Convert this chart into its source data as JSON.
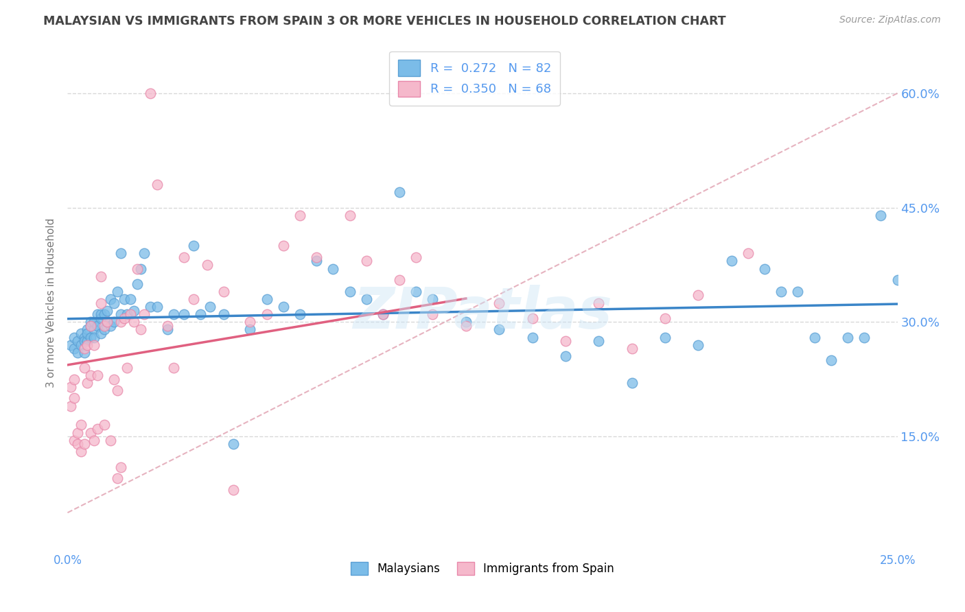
{
  "title": "MALAYSIAN VS IMMIGRANTS FROM SPAIN 3 OR MORE VEHICLES IN HOUSEHOLD CORRELATION CHART",
  "source": "Source: ZipAtlas.com",
  "ylabel": "3 or more Vehicles in Household",
  "legend_label1": "Malaysians",
  "legend_label2": "Immigrants from Spain",
  "R1": "0.272",
  "N1": "82",
  "R2": "0.350",
  "N2": "68",
  "color_blue": "#7bbce8",
  "color_blue_edge": "#5a9fd4",
  "color_blue_line": "#3a85c8",
  "color_pink": "#f5b8cb",
  "color_pink_edge": "#e888aa",
  "color_pink_line": "#e06080",
  "color_dashed": "#e0a0b0",
  "background_color": "#ffffff",
  "grid_color": "#d8d8d8",
  "title_color": "#444444",
  "right_axis_color": "#5599ee",
  "watermark": "ZIPatlas",
  "xlim": [
    0.0,
    0.25
  ],
  "ylim": [
    0.0,
    0.65
  ],
  "blue_points_x": [
    0.001,
    0.002,
    0.002,
    0.003,
    0.003,
    0.004,
    0.004,
    0.005,
    0.005,
    0.005,
    0.006,
    0.006,
    0.006,
    0.007,
    0.007,
    0.007,
    0.008,
    0.008,
    0.008,
    0.009,
    0.009,
    0.01,
    0.01,
    0.01,
    0.011,
    0.011,
    0.012,
    0.012,
    0.013,
    0.013,
    0.014,
    0.014,
    0.015,
    0.016,
    0.016,
    0.017,
    0.018,
    0.019,
    0.02,
    0.021,
    0.022,
    0.023,
    0.025,
    0.027,
    0.03,
    0.032,
    0.035,
    0.038,
    0.04,
    0.043,
    0.047,
    0.05,
    0.055,
    0.06,
    0.065,
    0.07,
    0.075,
    0.08,
    0.085,
    0.09,
    0.095,
    0.1,
    0.105,
    0.11,
    0.12,
    0.13,
    0.14,
    0.15,
    0.16,
    0.17,
    0.18,
    0.19,
    0.2,
    0.21,
    0.215,
    0.22,
    0.225,
    0.23,
    0.235,
    0.24,
    0.245,
    0.25
  ],
  "blue_points_y": [
    0.27,
    0.265,
    0.28,
    0.26,
    0.275,
    0.27,
    0.285,
    0.26,
    0.28,
    0.275,
    0.29,
    0.275,
    0.285,
    0.295,
    0.28,
    0.3,
    0.29,
    0.3,
    0.28,
    0.31,
    0.295,
    0.305,
    0.285,
    0.31,
    0.31,
    0.29,
    0.315,
    0.3,
    0.33,
    0.295,
    0.325,
    0.3,
    0.34,
    0.39,
    0.31,
    0.33,
    0.31,
    0.33,
    0.315,
    0.35,
    0.37,
    0.39,
    0.32,
    0.32,
    0.29,
    0.31,
    0.31,
    0.4,
    0.31,
    0.32,
    0.31,
    0.14,
    0.29,
    0.33,
    0.32,
    0.31,
    0.38,
    0.37,
    0.34,
    0.33,
    0.31,
    0.47,
    0.34,
    0.33,
    0.3,
    0.29,
    0.28,
    0.255,
    0.275,
    0.22,
    0.28,
    0.27,
    0.38,
    0.37,
    0.34,
    0.34,
    0.28,
    0.25,
    0.28,
    0.28,
    0.44,
    0.355
  ],
  "pink_points_x": [
    0.001,
    0.001,
    0.002,
    0.002,
    0.002,
    0.003,
    0.003,
    0.004,
    0.004,
    0.005,
    0.005,
    0.005,
    0.006,
    0.006,
    0.007,
    0.007,
    0.007,
    0.008,
    0.008,
    0.009,
    0.009,
    0.01,
    0.01,
    0.011,
    0.011,
    0.012,
    0.013,
    0.014,
    0.015,
    0.015,
    0.016,
    0.016,
    0.017,
    0.018,
    0.019,
    0.02,
    0.021,
    0.022,
    0.023,
    0.025,
    0.027,
    0.03,
    0.032,
    0.035,
    0.038,
    0.042,
    0.047,
    0.05,
    0.055,
    0.06,
    0.065,
    0.07,
    0.075,
    0.085,
    0.09,
    0.095,
    0.1,
    0.105,
    0.11,
    0.12,
    0.13,
    0.14,
    0.15,
    0.16,
    0.17,
    0.18,
    0.19,
    0.205
  ],
  "pink_points_y": [
    0.215,
    0.19,
    0.225,
    0.145,
    0.2,
    0.14,
    0.155,
    0.13,
    0.165,
    0.14,
    0.24,
    0.265,
    0.22,
    0.27,
    0.295,
    0.23,
    0.155,
    0.27,
    0.145,
    0.16,
    0.23,
    0.36,
    0.325,
    0.295,
    0.165,
    0.3,
    0.145,
    0.225,
    0.095,
    0.21,
    0.11,
    0.3,
    0.305,
    0.24,
    0.31,
    0.3,
    0.37,
    0.29,
    0.31,
    0.6,
    0.48,
    0.295,
    0.24,
    0.385,
    0.33,
    0.375,
    0.34,
    0.08,
    0.3,
    0.31,
    0.4,
    0.44,
    0.385,
    0.44,
    0.38,
    0.31,
    0.355,
    0.385,
    0.31,
    0.295,
    0.325,
    0.305,
    0.275,
    0.325,
    0.265,
    0.305,
    0.335,
    0.39
  ]
}
